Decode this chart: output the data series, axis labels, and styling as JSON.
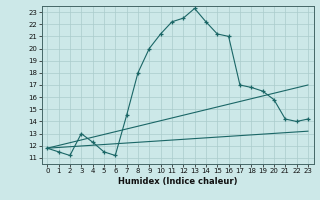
{
  "xlabel": "Humidex (Indice chaleur)",
  "bg_color": "#cce8e8",
  "grid_color": "#aacccc",
  "line_color": "#1a6666",
  "xlim": [
    -0.5,
    23.5
  ],
  "ylim": [
    10.5,
    23.5
  ],
  "xticks": [
    0,
    1,
    2,
    3,
    4,
    5,
    6,
    7,
    8,
    9,
    10,
    11,
    12,
    13,
    14,
    15,
    16,
    17,
    18,
    19,
    20,
    21,
    22,
    23
  ],
  "yticks": [
    11,
    12,
    13,
    14,
    15,
    16,
    17,
    18,
    19,
    20,
    21,
    22,
    23
  ],
  "main_x": [
    0,
    1,
    2,
    3,
    4,
    5,
    6,
    7,
    8,
    9,
    10,
    11,
    12,
    13,
    14,
    15,
    16,
    17,
    18,
    19,
    20,
    21,
    22,
    23
  ],
  "main_y": [
    11.8,
    11.5,
    11.2,
    13.0,
    12.3,
    11.5,
    11.2,
    14.5,
    18.0,
    20.0,
    21.2,
    22.2,
    22.5,
    23.3,
    22.2,
    21.2,
    21.0,
    17.0,
    16.8,
    16.5,
    15.8,
    14.2,
    14.0,
    14.2
  ],
  "line1_x": [
    0,
    23
  ],
  "line1_y": [
    11.8,
    13.2
  ],
  "line2_x": [
    0,
    23
  ],
  "line2_y": [
    11.8,
    17.0
  ]
}
